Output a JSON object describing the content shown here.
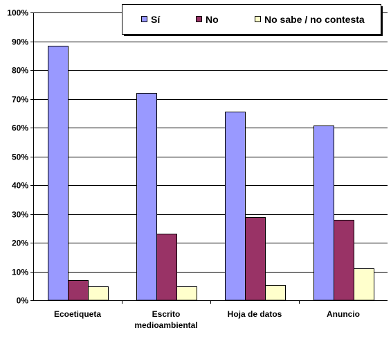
{
  "chart_data": {
    "type": "bar",
    "title": "",
    "xlabel": "",
    "ylabel": "",
    "categories": [
      [
        "Ecoetiqueta"
      ],
      [
        "Escrito",
        "medioambiental"
      ],
      [
        "Hoja de datos"
      ],
      [
        "Anuncio"
      ]
    ],
    "series": [
      {
        "name": "Sí",
        "color": "#9999ff",
        "values": [
          88.5,
          72.0,
          65.5,
          60.7
        ]
      },
      {
        "name": "No",
        "color": "#993366",
        "values": [
          7.0,
          23.2,
          28.8,
          28.0
        ]
      },
      {
        "name": "No sabe / no contesta",
        "color": "#ffffcc",
        "values": [
          4.8,
          4.8,
          5.4,
          11.2
        ]
      }
    ],
    "ylim": [
      0,
      100
    ],
    "yticks": [
      "0%",
      "10%",
      "20%",
      "30%",
      "40%",
      "50%",
      "60%",
      "70%",
      "80%",
      "90%",
      "100%"
    ],
    "grid": true,
    "legend": "top-right"
  }
}
